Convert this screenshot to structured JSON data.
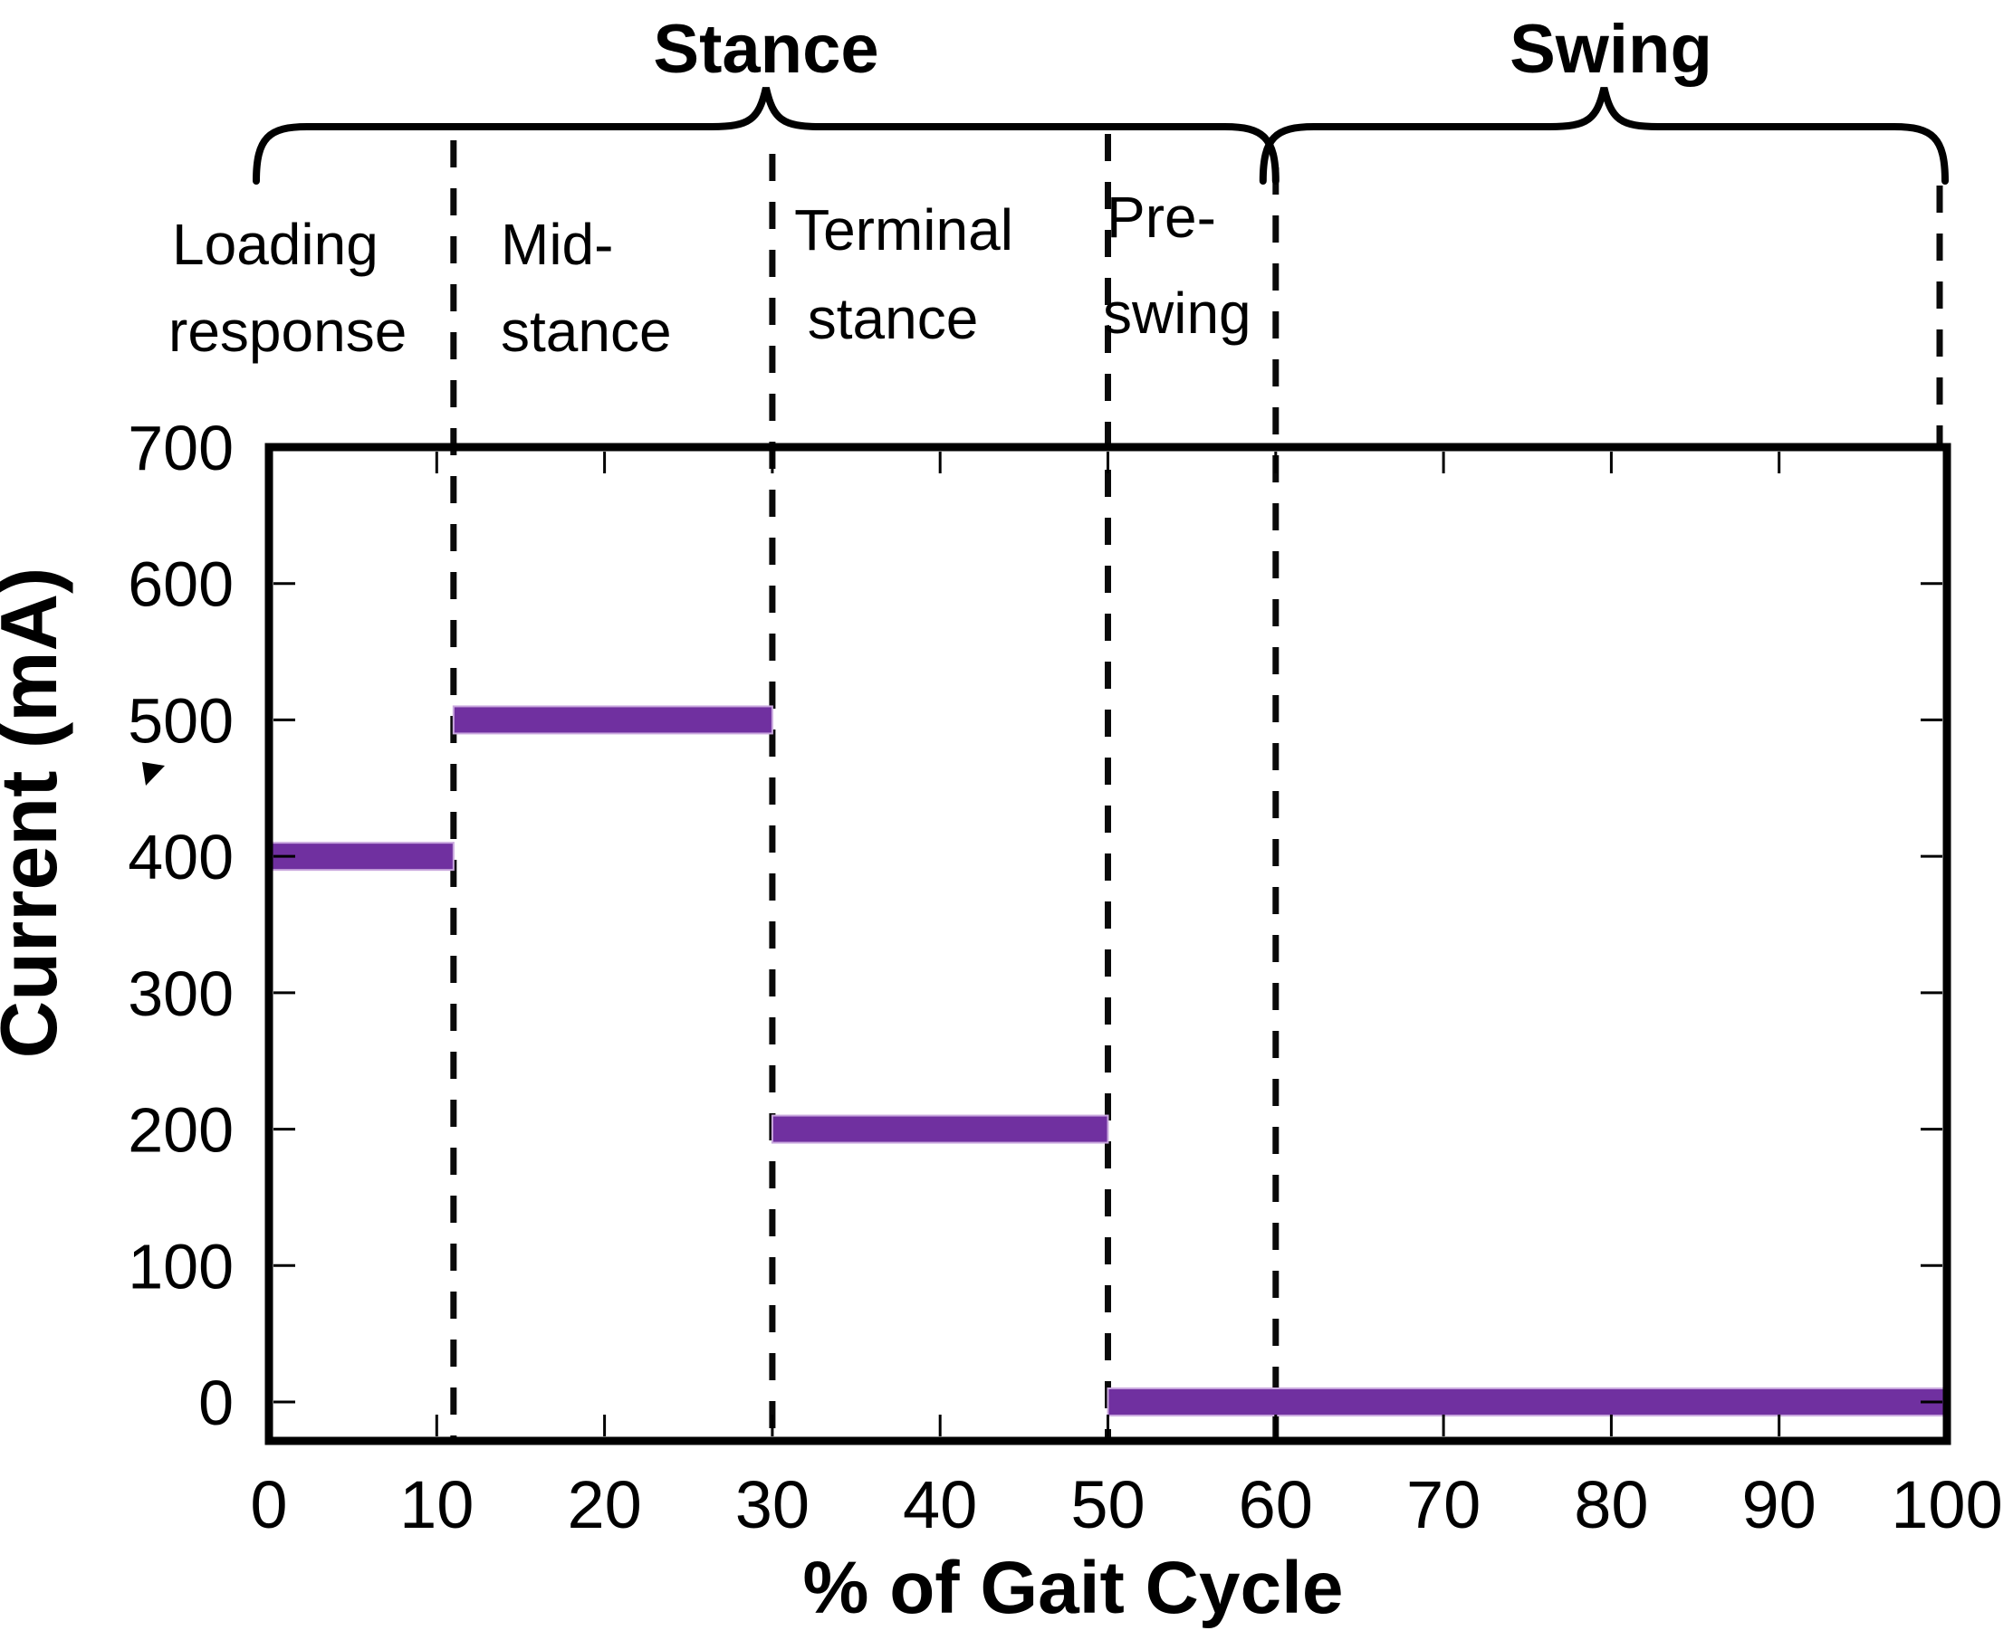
{
  "figure": {
    "group_labels": {
      "stance": "Stance",
      "swing": "Swing"
    },
    "colors": {
      "bar": "#7030A0",
      "bar_edge": "#C9A8DE",
      "axis": "#000000",
      "dashed_line": "#0a0a0a",
      "background": "#ffffff"
    }
  },
  "chart_data": {
    "type": "bar",
    "title": "",
    "xlabel": "% of Gait Cycle",
    "ylabel": "Current (mA)",
    "xlim": [
      0,
      100
    ],
    "ylim": [
      0,
      700
    ],
    "x_ticks": [
      0,
      10,
      20,
      30,
      40,
      50,
      60,
      70,
      80,
      90,
      100
    ],
    "y_ticks": [
      0,
      100,
      200,
      300,
      400,
      500,
      600,
      700
    ],
    "grid": false,
    "legend": "none",
    "bar_color": "#7030A0",
    "segments": [
      {
        "phase": "Loading response",
        "x_start": 0,
        "x_end": 11,
        "current_mA": 400
      },
      {
        "phase": "Mid-stance",
        "x_start": 11,
        "x_end": 30,
        "current_mA": 500
      },
      {
        "phase": "Terminal stance",
        "x_start": 30,
        "x_end": 50,
        "current_mA": 200
      },
      {
        "phase": "Pre-swing and swing",
        "x_start": 50,
        "x_end": 100,
        "current_mA": 0
      }
    ],
    "phase_labels": [
      {
        "line1": "Loading",
        "line2": "response"
      },
      {
        "line1": "Mid-",
        "line2": "stance"
      },
      {
        "line1": "Terminal",
        "line2": "stance"
      },
      {
        "line1": "Pre-",
        "line2": "swing"
      }
    ],
    "phase_groups": [
      {
        "label": "Stance",
        "x_start": 0,
        "x_end": 60
      },
      {
        "label": "Swing",
        "x_start": 60,
        "x_end": 100
      }
    ],
    "dashed_boundaries": [
      11,
      30,
      50,
      60,
      100
    ]
  }
}
